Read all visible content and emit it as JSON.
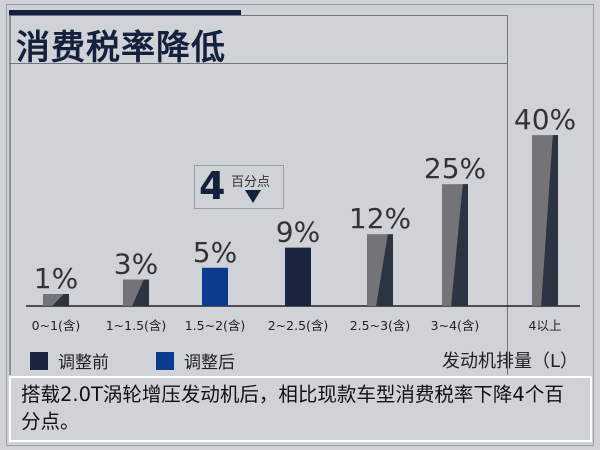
{
  "title": "消费税率降低",
  "annotation": {
    "value": "4",
    "unit": "百分点",
    "direction": "down"
  },
  "legend": [
    {
      "label": "调整前",
      "color": "#1a2540"
    },
    {
      "label": "调整后",
      "color": "#0c3a8e"
    }
  ],
  "note": "搭载2.0T涡轮增压发动机后，相比现款车型消费税率下降4个百分点。",
  "chart_data": {
    "type": "bar",
    "title": "消费税率降低",
    "xlabel": "发动机排量（L）",
    "ylabel": "",
    "categories": [
      "0~1(含)",
      "1~1.5(含)",
      "1.5~2(含)",
      "2~2.5(含)",
      "2.5~3(含)",
      "3~4(含)",
      "4以上"
    ],
    "values": [
      1,
      3,
      5,
      9,
      12,
      25,
      40
    ],
    "labels": [
      "1%",
      "3%",
      "5%",
      "9%",
      "12%",
      "25%",
      "40%"
    ],
    "bar_styles": [
      "other",
      "other",
      "after",
      "before",
      "other",
      "other",
      "other"
    ],
    "colors": {
      "other": "#727478",
      "other_shade": "#2c3441",
      "after": "#0c3a8e",
      "before": "#1a2540"
    },
    "grid": false
  }
}
